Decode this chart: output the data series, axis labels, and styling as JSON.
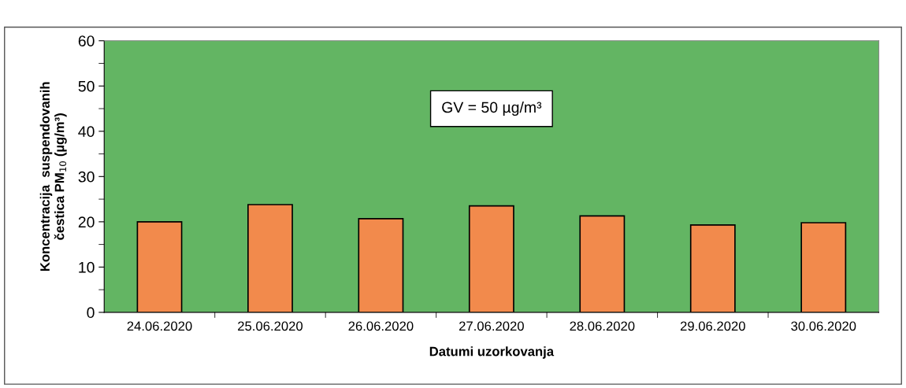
{
  "chart_data": {
    "type": "bar",
    "xlabel": "Datumi uzorkovanja",
    "ylabel": "Koncentracija  suspendovanih\nčestica PM$_{10}$ (µg/m³)",
    "annotations": [
      "GV = 50 µg/m³"
    ],
    "categories": [
      "24.06.2020",
      "25.06.2020",
      "26.06.2020",
      "27.06.2020",
      "28.06.2020",
      "29.06.2020",
      "30.06.2020"
    ],
    "values": [
      20.0,
      23.8,
      20.7,
      23.5,
      21.3,
      19.3,
      19.8
    ],
    "color": "#f28a4c",
    "ylim": [
      0,
      60
    ],
    "yticks": [
      0,
      {
        "value": 5,
        "label": null
      },
      10,
      {
        "value": 15,
        "label": null
      },
      20,
      {
        "value": 25,
        "label": null
      },
      30,
      {
        "value": 35,
        "label": null
      },
      40,
      {
        "value": 45,
        "label": null
      },
      50,
      {
        "value": 55,
        "label": null
      },
      60
    ],
    "grid": false,
    "legend": false
  }
}
